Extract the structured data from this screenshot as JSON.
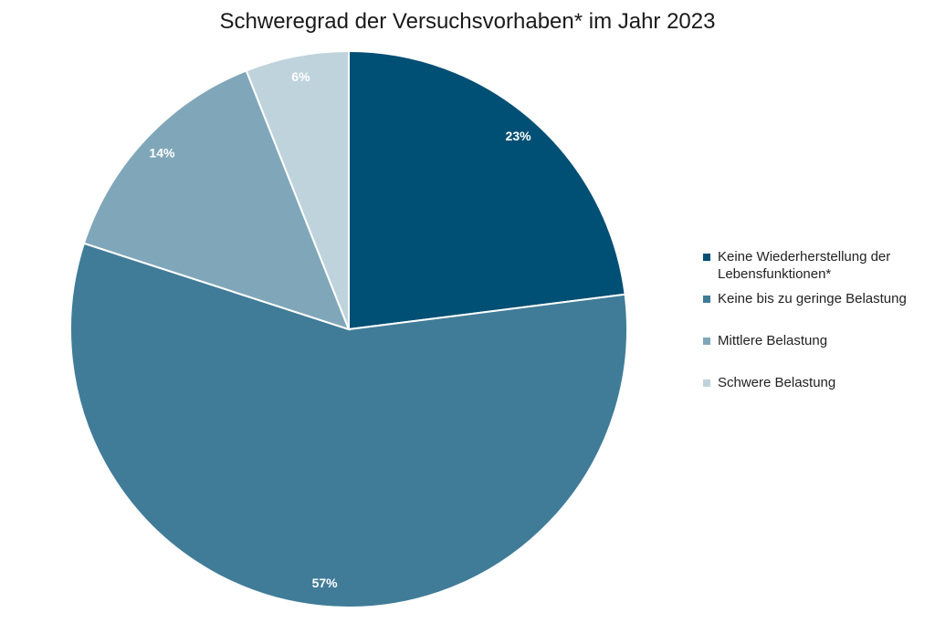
{
  "chart_data": {
    "type": "pie",
    "title": "Schweregrad der Versuchsvorhaben* im Jahr 2023",
    "categories": [
      "Keine Wiederherstellung der Lebensfunktionen*",
      "Keine bis zu geringe Belastung",
      "Mittlere Belastung",
      "Schwere Belastung"
    ],
    "values": [
      23,
      57,
      14,
      6
    ],
    "data_labels": [
      "23%",
      "57%",
      "14%",
      "6%"
    ],
    "colors": [
      "#004f74",
      "#407c98",
      "#80a7b9",
      "#bfd3dc"
    ],
    "legend_position": "right"
  }
}
